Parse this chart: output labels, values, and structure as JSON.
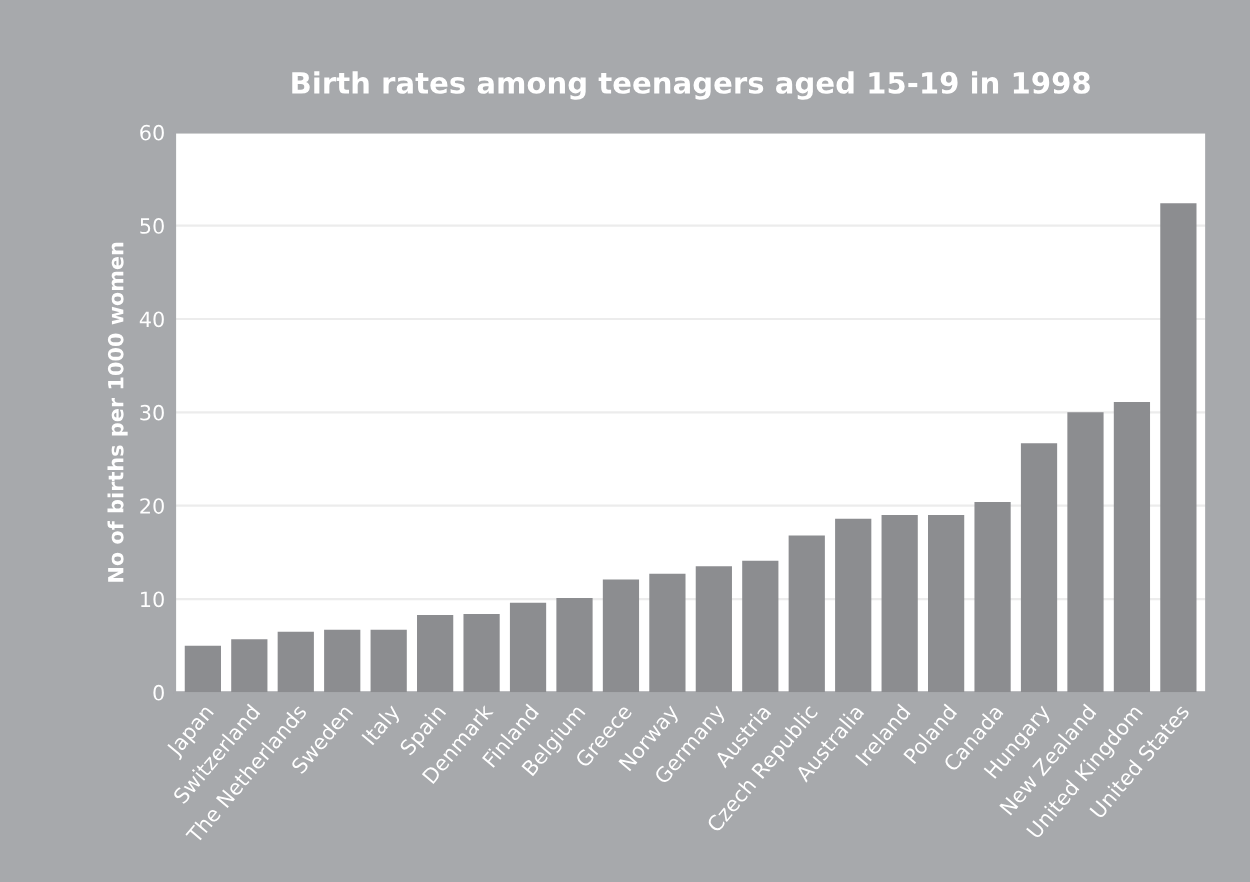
{
  "chart_data": {
    "type": "bar",
    "title": "Birth rates among teenagers aged 15-19 in 1998",
    "ylabel": "No of births per 1000 women",
    "categories": [
      "Japan",
      "Switzerland",
      "The Netherlands",
      "Sweden",
      "Italy",
      "Spain",
      "Denmark",
      "Finland",
      "Belgium",
      "Greece",
      "Norway",
      "Germany",
      "Austria",
      "Czech Republic",
      "Australia",
      "Ireland",
      "Poland",
      "Canada",
      "Hungary",
      "New Zealand",
      "United Kingdom",
      "United States"
    ],
    "values": [
      5.0,
      5.7,
      6.5,
      6.7,
      6.7,
      8.3,
      8.4,
      9.6,
      10.1,
      12.1,
      12.7,
      13.5,
      14.1,
      16.8,
      18.6,
      19.0,
      19.0,
      20.4,
      26.7,
      30.0,
      31.1,
      52.4
    ],
    "color": "#8c8d90",
    "ylim": [
      0,
      60
    ],
    "yticks": [
      0,
      10,
      20,
      30,
      40,
      50,
      60
    ],
    "grid": "y"
  }
}
